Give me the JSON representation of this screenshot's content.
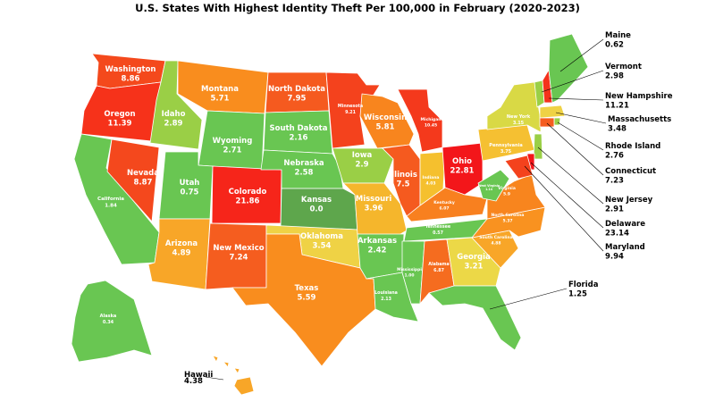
{
  "title": "U.S. States With Highest Identity Theft Per 100,000 in February (2020-2023)",
  "states": [
    {
      "id": "WA",
      "name": "Washington",
      "value": "8.86",
      "color": "#f4491c"
    },
    {
      "id": "OR",
      "name": "Oregon",
      "value": "11.39",
      "color": "#f6321a"
    },
    {
      "id": "CA",
      "name": "California",
      "value": "1.84",
      "color": "#69c652"
    },
    {
      "id": "NV",
      "name": "Nevada",
      "value": "8.87",
      "color": "#f4481d"
    },
    {
      "id": "ID",
      "name": "Idaho",
      "value": "2.89",
      "color": "#9acf46"
    },
    {
      "id": "MT",
      "name": "Montana",
      "value": "5.71",
      "color": "#f98d1e"
    },
    {
      "id": "WY",
      "name": "Wyoming",
      "value": "2.71",
      "color": "#69c652"
    },
    {
      "id": "UT",
      "name": "Utah",
      "value": "0.75",
      "color": "#69c652"
    },
    {
      "id": "AZ",
      "name": "Arizona",
      "value": "4.89",
      "color": "#f8a628"
    },
    {
      "id": "CO",
      "name": "Colorado",
      "value": "21.86",
      "color": "#f6251a"
    },
    {
      "id": "NM",
      "name": "New Mexico",
      "value": "7.24",
      "color": "#f55d1f"
    },
    {
      "id": "ND",
      "name": "North Dakota",
      "value": "7.95",
      "color": "#f55a1f"
    },
    {
      "id": "SD",
      "name": "South Dakota",
      "value": "2.16",
      "color": "#69c652"
    },
    {
      "id": "NE",
      "name": "Nebraska",
      "value": "2.58",
      "color": "#69c652"
    },
    {
      "id": "KS",
      "name": "Kansas",
      "value": "0.0",
      "color": "#5ea64c"
    },
    {
      "id": "OK",
      "name": "Oklahoma",
      "value": "3.54",
      "color": "#efd245"
    },
    {
      "id": "TX",
      "name": "Texas",
      "value": "5.59",
      "color": "#f98d1e"
    },
    {
      "id": "MN",
      "name": "Minnesota",
      "value": "9.21",
      "color": "#f4421d"
    },
    {
      "id": "IA",
      "name": "Iowa",
      "value": "2.9",
      "color": "#9acf46"
    },
    {
      "id": "MO",
      "name": "Missouri",
      "value": "3.96",
      "color": "#f5b62c"
    },
    {
      "id": "AR",
      "name": "Arkansas",
      "value": "2.42",
      "color": "#69c652"
    },
    {
      "id": "LA",
      "name": "Louisiana",
      "value": "2.13",
      "color": "#69c652"
    },
    {
      "id": "WI",
      "name": "Wisconsin",
      "value": "5.81",
      "color": "#f8851e"
    },
    {
      "id": "IL",
      "name": "Illinois",
      "value": "7.5",
      "color": "#f55a1f"
    },
    {
      "id": "MI",
      "name": "Michigan",
      "value": "10.45",
      "color": "#f4391c"
    },
    {
      "id": "IN",
      "name": "Indiana",
      "value": "4.03",
      "color": "#f5c02e"
    },
    {
      "id": "OH",
      "name": "Ohio",
      "value": "22.81",
      "color": "#f3161a"
    },
    {
      "id": "KY",
      "name": "Kentucky",
      "value": "6.07",
      "color": "#f8801f"
    },
    {
      "id": "TN",
      "name": "Tennessee",
      "value": "0.57",
      "color": "#69c652"
    },
    {
      "id": "MS",
      "name": "Mississippi",
      "value": "1.00",
      "color": "#69c652"
    },
    {
      "id": "AL",
      "name": "Alabama",
      "value": "6.87",
      "color": "#f56c1f"
    },
    {
      "id": "GA",
      "name": "Georgia",
      "value": "3.21",
      "color": "#ecd847"
    },
    {
      "id": "FL",
      "name": "Florida",
      "value": "1.25",
      "color": "#69c652"
    },
    {
      "id": "SC",
      "name": "South Carolina",
      "value": "4.88",
      "color": "#f8a628"
    },
    {
      "id": "NC",
      "name": "North Carolina",
      "value": "5.37",
      "color": "#f99220"
    },
    {
      "id": "VA",
      "name": "Virginia",
      "value": "5.9",
      "color": "#f8851e"
    },
    {
      "id": "WV",
      "name": "West Virginia",
      "value": "1.14",
      "color": "#69c652"
    },
    {
      "id": "PA",
      "name": "Pennsylvania",
      "value": "3.75",
      "color": "#f5c032"
    },
    {
      "id": "NY",
      "name": "New York",
      "value": "3.15",
      "color": "#d9d945"
    },
    {
      "id": "VT",
      "name": "Vermont",
      "value": "2.98",
      "color": "#9acf46"
    },
    {
      "id": "NH",
      "name": "New Hampshire",
      "value": "11.21",
      "color": "#f4321c"
    },
    {
      "id": "ME",
      "name": "Maine",
      "value": "0.62",
      "color": "#69c652"
    },
    {
      "id": "MA",
      "name": "Massachusetts",
      "value": "3.48",
      "color": "#efd245"
    },
    {
      "id": "RI",
      "name": "Rhode Island",
      "value": "2.76",
      "color": "#9acf46"
    },
    {
      "id": "CT",
      "name": "Connecticut",
      "value": "7.23",
      "color": "#f55d1f"
    },
    {
      "id": "NJ",
      "name": "New Jersey",
      "value": "2.91",
      "color": "#9acf46"
    },
    {
      "id": "DE",
      "name": "Delaware",
      "value": "23.14",
      "color": "#f3161a"
    },
    {
      "id": "MD",
      "name": "Maryland",
      "value": "9.94",
      "color": "#f4421d"
    },
    {
      "id": "AK",
      "name": "Alaska",
      "value": "0.34",
      "color": "#69c652"
    },
    {
      "id": "HI",
      "name": "Hawaii",
      "value": "4.38",
      "color": "#f8a628"
    }
  ]
}
